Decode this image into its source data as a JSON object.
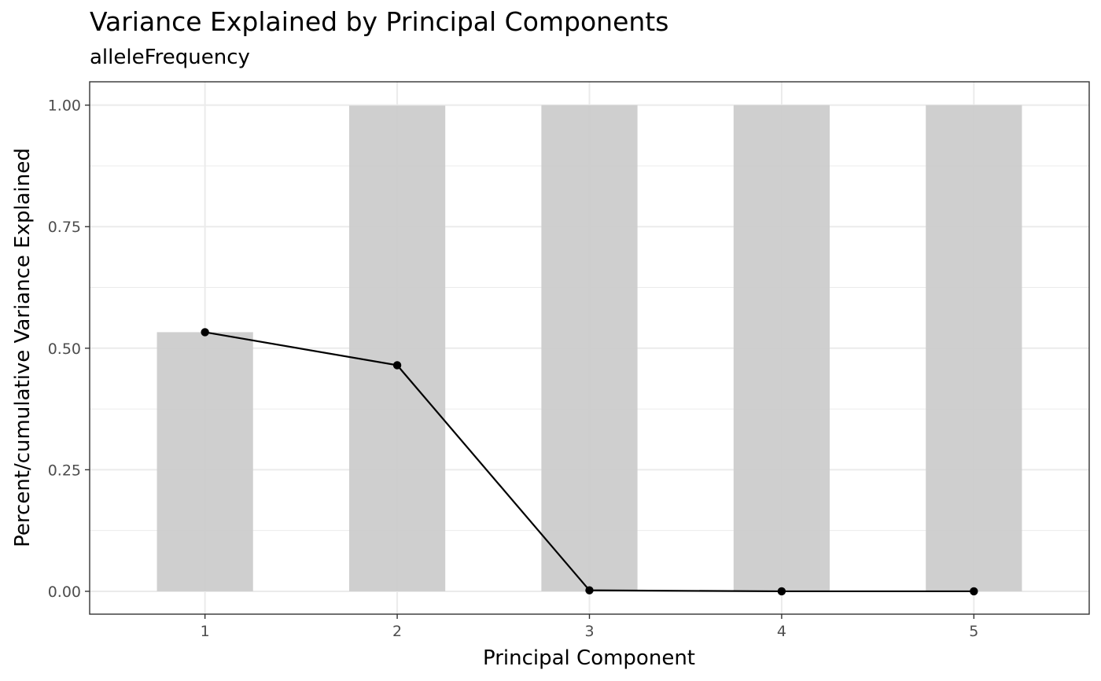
{
  "chart_data": {
    "type": "bar",
    "title": "Variance Explained by Principal Components",
    "subtitle": "alleleFrequency",
    "xlabel": "Principal Component",
    "ylabel": "Percent/cumulative Variance Explained",
    "categories": [
      "1",
      "2",
      "3",
      "4",
      "5"
    ],
    "ylim": [
      -0.047,
      1.048
    ],
    "yticks": [
      0,
      0.25,
      0.5,
      0.75,
      1.0
    ],
    "ytick_labels": [
      "0.00",
      "0.25",
      "0.50",
      "0.75",
      "1.00"
    ],
    "grid": true,
    "legend": "none",
    "series": [
      {
        "type": "bar",
        "values": [
          0.533,
          0.999,
          1.0,
          1.0,
          1.0
        ],
        "color": "#cccccc"
      },
      {
        "type": "line",
        "values": [
          0.533,
          0.465,
          0.002,
          0.0,
          0.0
        ],
        "color": "#000000"
      }
    ]
  }
}
